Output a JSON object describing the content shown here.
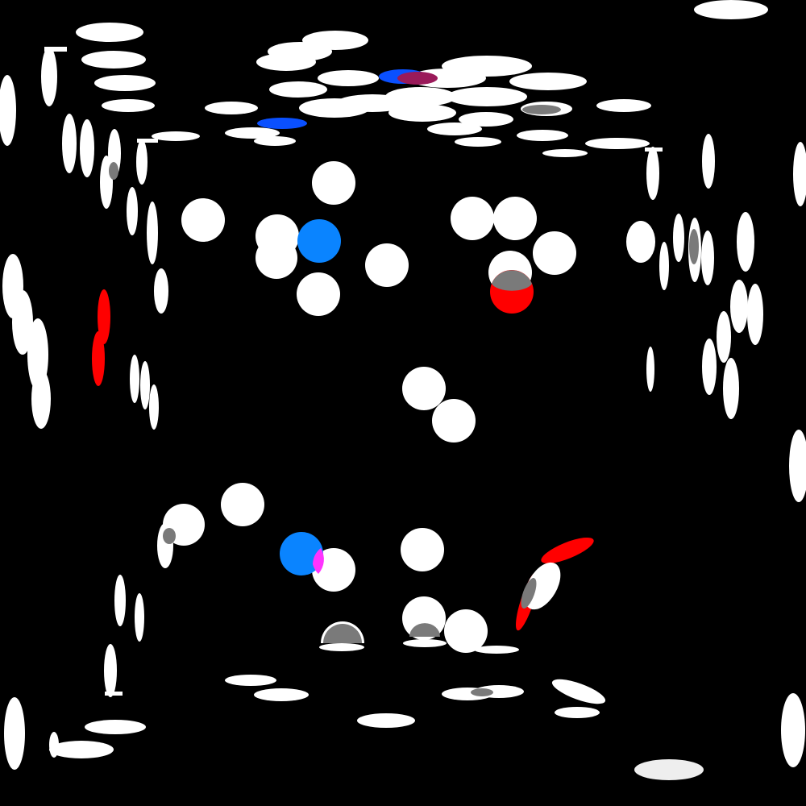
{
  "scene": {
    "background": "#000000",
    "palette": {
      "white": "#ffffff",
      "offwhite": "#eeeeee",
      "gray": "#7a7a7a",
      "sky_blue": "#0a84ff",
      "deep_blue": "#0a50ff",
      "red": "#ff0000",
      "magenta": "#ff33ff",
      "maroon": "#9a1a5a"
    }
  }
}
